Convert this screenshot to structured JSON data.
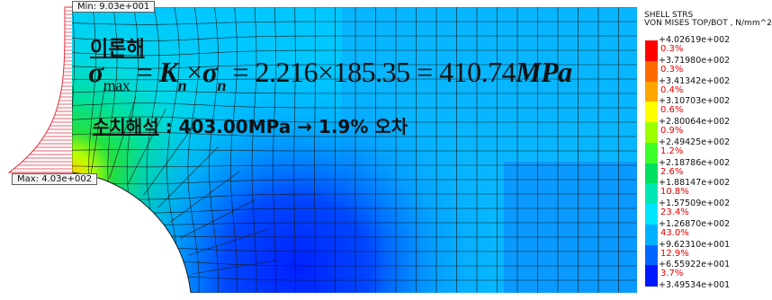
{
  "min_tag": "Min: 9.03e+001",
  "max_tag": "Max: 4.03e+002",
  "theory": {
    "title": "이론해",
    "sigma": "σ",
    "sub_max": "max",
    "eq1": " = ",
    "K": "K",
    "n1": "n",
    "times": "×",
    "sigma2": "σ",
    "n2": "n",
    "rhs": " = 2.216×185.35 = 410.74",
    "unit": "MPa"
  },
  "numeric": {
    "label": "수치해석",
    "text": " : 403.00MPa → 1.9% 오차"
  },
  "legend": {
    "title_1": "SHELL STRS",
    "title_2": "VON MISES TOP/BOT , N/mm^2",
    "colors": [
      "#ff0000",
      "#ff6a00",
      "#ffa500",
      "#ffff00",
      "#9cff00",
      "#3cff2a",
      "#00e060",
      "#00e6b4",
      "#00e6ff",
      "#00b0ff",
      "#0064ff",
      "#0018ff"
    ],
    "values": [
      "+4.02619e+002",
      "+3.71980e+002",
      "+3.41342e+002",
      "+3.10703e+002",
      "+2.80064e+002",
      "+2.49425e+002",
      "+2.18786e+002",
      "+1.88147e+002",
      "+1.57509e+002",
      "+1.26870e+002",
      "+9.62310e+001",
      "+6.55922e+001",
      "+3.49534e+001"
    ],
    "percents": [
      "0.3%",
      "0.3%",
      "0.4%",
      "0.6%",
      "0.9%",
      "1.2%",
      "2.6%",
      "10.8%",
      "23.4%",
      "43.0%",
      "12.9%",
      "3.7%"
    ]
  }
}
